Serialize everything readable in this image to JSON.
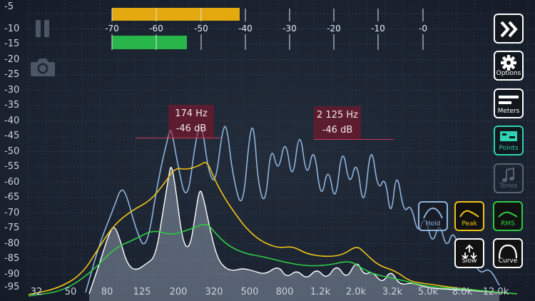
{
  "db_scale": {
    "labels": [
      "-5",
      "-10",
      "-15",
      "-20",
      "-25",
      "-30",
      "-35",
      "-40",
      "-45",
      "-50",
      "-55",
      "-60",
      "-65",
      "-70",
      "-75",
      "-80",
      "-85",
      "-90",
      "-95"
    ],
    "min": -95,
    "max": -5
  },
  "freq_axis": {
    "labels": [
      "32",
      "50",
      "80",
      "125",
      "200",
      "320",
      "500",
      "800",
      "1.2k",
      "2.0k",
      "3.2k",
      "5.0k",
      "8.0k",
      "12.0k"
    ]
  },
  "level_meter": {
    "ticks": [
      "-70",
      "-60",
      "-50",
      "-40",
      "-30",
      "-20",
      "-10",
      "-0"
    ],
    "peak_level_fraction": 0.41,
    "rms_level_fraction": 0.24,
    "peak_color": "#e3a90e",
    "rms_color": "#28b64a"
  },
  "markers": [
    {
      "freq": "174 Hz",
      "level": "-46 dB"
    },
    {
      "freq": "2 125 Hz",
      "level": "-46 dB"
    }
  ],
  "sidebar": {
    "forward_icon": "double-chevron-right-icon",
    "options_label": "Options",
    "meters_label": "Meters",
    "points_label": "Points",
    "tones_label": "Tones"
  },
  "controls": {
    "hold_label": "Hold",
    "peak_label": "Peak",
    "rms_label": "RMS",
    "slow_label": "Slow",
    "curve_label": "Curve"
  },
  "colors": {
    "accent_teal": "#2fd3b0",
    "peak_yellow": "#f2c318",
    "rms_green": "#2fcc45",
    "spectrum_blue": "#8fb4dc",
    "marker_red": "#8c122a"
  },
  "chart_data": {
    "type": "line",
    "series": [
      {
        "name": "Peak"
      },
      {
        "name": "RMS"
      }
    ]
  }
}
